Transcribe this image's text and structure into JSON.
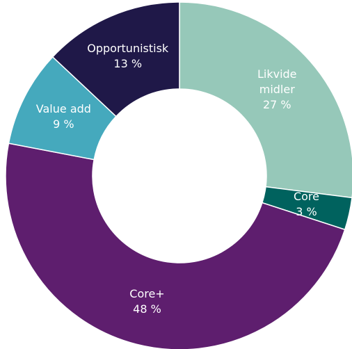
{
  "chart_data": {
    "type": "donut",
    "categories": [
      "Likvide midler",
      "Core",
      "Core+",
      "Value add",
      "Opportunistisk"
    ],
    "values": [
      27,
      3,
      48,
      9,
      13
    ],
    "value_labels": [
      "27 %",
      "3 %",
      "48 %",
      "9 %",
      "13 %"
    ],
    "colors": [
      "#96c8b9",
      "#00625e",
      "#5e1e6e",
      "#45a9bd",
      "#1f1848"
    ]
  }
}
